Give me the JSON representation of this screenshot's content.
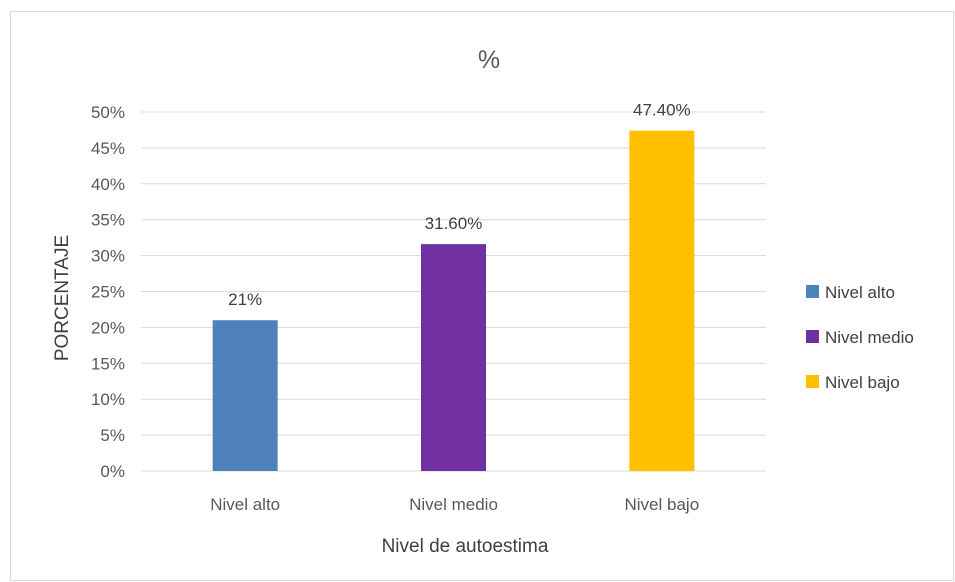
{
  "chart_data": {
    "type": "bar",
    "title": "%",
    "xlabel": "Nivel de autoestima",
    "ylabel": "PORCENTAJE",
    "categories": [
      "Nivel alto",
      "Nivel medio",
      "Nivel bajo"
    ],
    "values": [
      0.21,
      0.316,
      0.474
    ],
    "data_labels": [
      "21%",
      "31.60%",
      "47.40%"
    ],
    "colors": [
      "#4f81bd",
      "#7030a0",
      "#ffc000"
    ],
    "ylim": [
      0,
      0.5
    ],
    "yticks": [
      0,
      0.05,
      0.1,
      0.15,
      0.2,
      0.25,
      0.3,
      0.35,
      0.4,
      0.45,
      0.5
    ],
    "ytick_labels": [
      "0%",
      "5%",
      "10%",
      "15%",
      "20%",
      "25%",
      "30%",
      "35%",
      "40%",
      "45%",
      "50%"
    ],
    "grid": true,
    "legend": {
      "position": "right",
      "entries": [
        "Nivel alto",
        "Nivel medio",
        "Nivel bajo"
      ]
    }
  }
}
